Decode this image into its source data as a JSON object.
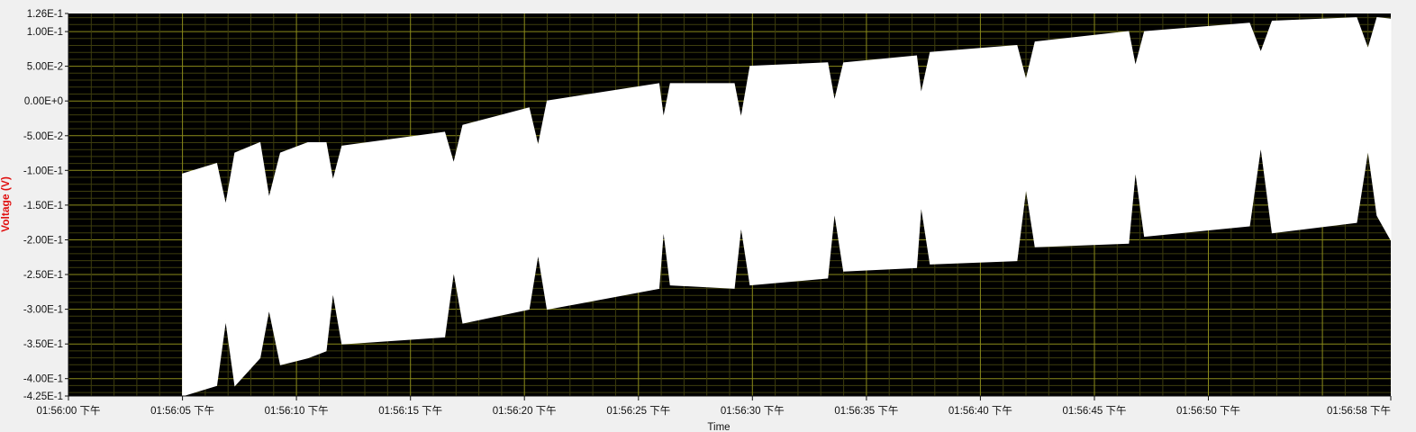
{
  "chart_data": {
    "type": "area",
    "title": "",
    "xlabel": "Time",
    "ylabel": "Voltage (V)",
    "ylim": [
      -0.425,
      0.126
    ],
    "xlim": [
      "01:56:00",
      "01:56:58"
    ],
    "y_ticks": [
      {
        "value": 0.126,
        "label": "1.26E-1"
      },
      {
        "value": 0.1,
        "label": "1.00E-1"
      },
      {
        "value": 0.05,
        "label": "5.00E-2"
      },
      {
        "value": 0.0,
        "label": "0.00E+0"
      },
      {
        "value": -0.05,
        "label": "-5.00E-2"
      },
      {
        "value": -0.1,
        "label": "-1.00E-1"
      },
      {
        "value": -0.15,
        "label": "-1.50E-1"
      },
      {
        "value": -0.2,
        "label": "-2.00E-1"
      },
      {
        "value": -0.25,
        "label": "-2.50E-1"
      },
      {
        "value": -0.3,
        "label": "-3.00E-1"
      },
      {
        "value": -0.35,
        "label": "-3.50E-1"
      },
      {
        "value": -0.4,
        "label": "-4.00E-1"
      },
      {
        "value": -0.425,
        "label": "-4.25E-1"
      }
    ],
    "x_ticks": [
      {
        "value": "01:56:00",
        "label": "01:56:00 下午"
      },
      {
        "value": "01:56:05",
        "label": "01:56:05 下午"
      },
      {
        "value": "01:56:10",
        "label": "01:56:10 下午"
      },
      {
        "value": "01:56:15",
        "label": "01:56:15 下午"
      },
      {
        "value": "01:56:20",
        "label": "01:56:20 下午"
      },
      {
        "value": "01:56:25",
        "label": "01:56:25 下午"
      },
      {
        "value": "01:56:30",
        "label": "01:56:30 下午"
      },
      {
        "value": "01:56:35",
        "label": "01:56:35 下午"
      },
      {
        "value": "01:56:40",
        "label": "01:56:40 下午"
      },
      {
        "value": "01:56:45",
        "label": "01:56:45 下午"
      },
      {
        "value": "01:56:50",
        "label": "01:56:50 下午"
      },
      {
        "value": "01:56:58",
        "label": "01:56:58 下午"
      }
    ],
    "grid": true,
    "series": [
      {
        "color": "#ffffff",
        "envelope": {
          "time": [
            "01:56:05.0",
            "01:56:06.5",
            "01:56:06.9",
            "01:56:07.3",
            "01:56:08.4",
            "01:56:08.8",
            "01:56:09.3",
            "01:56:10.5",
            "01:56:11.3",
            "01:56:11.6",
            "01:56:12.0",
            "01:56:16.5",
            "01:56:16.9",
            "01:56:17.3",
            "01:56:20.2",
            "01:56:20.6",
            "01:56:21.0",
            "01:56:25.9",
            "01:56:26.1",
            "01:56:26.4",
            "01:56:29.2",
            "01:56:29.5",
            "01:56:29.9",
            "01:56:33.3",
            "01:56:33.6",
            "01:56:34.0",
            "01:56:37.2",
            "01:56:37.4",
            "01:56:37.8",
            "01:56:41.6",
            "01:56:42.0",
            "01:56:42.4",
            "01:56:46.5",
            "01:56:46.8",
            "01:56:47.2",
            "01:56:51.8",
            "01:56:52.3",
            "01:56:52.8",
            "01:56:56.5",
            "01:56:57.0",
            "01:56:57.4",
            "01:56:58.0"
          ],
          "max": [
            -0.105,
            -0.09,
            -0.15,
            -0.075,
            -0.06,
            -0.14,
            -0.075,
            -0.06,
            -0.06,
            -0.115,
            -0.065,
            -0.045,
            -0.09,
            -0.035,
            -0.01,
            -0.065,
            0.0,
            0.025,
            -0.025,
            0.025,
            0.025,
            -0.025,
            0.05,
            0.055,
            0.0,
            0.055,
            0.065,
            0.01,
            0.07,
            0.08,
            0.03,
            0.085,
            0.1,
            0.05,
            0.1,
            0.112,
            0.07,
            0.115,
            0.12,
            0.075,
            0.12,
            0.118
          ],
          "min": [
            -0.425,
            -0.41,
            -0.315,
            -0.41,
            -0.37,
            -0.3,
            -0.38,
            -0.37,
            -0.36,
            -0.275,
            -0.35,
            -0.34,
            -0.245,
            -0.32,
            -0.3,
            -0.22,
            -0.3,
            -0.27,
            -0.185,
            -0.265,
            -0.27,
            -0.18,
            -0.265,
            -0.255,
            -0.16,
            -0.245,
            -0.24,
            -0.15,
            -0.235,
            -0.23,
            -0.125,
            -0.21,
            -0.205,
            -0.1,
            -0.195,
            -0.18,
            -0.065,
            -0.19,
            -0.175,
            -0.07,
            -0.165,
            -0.2
          ]
        }
      }
    ]
  }
}
